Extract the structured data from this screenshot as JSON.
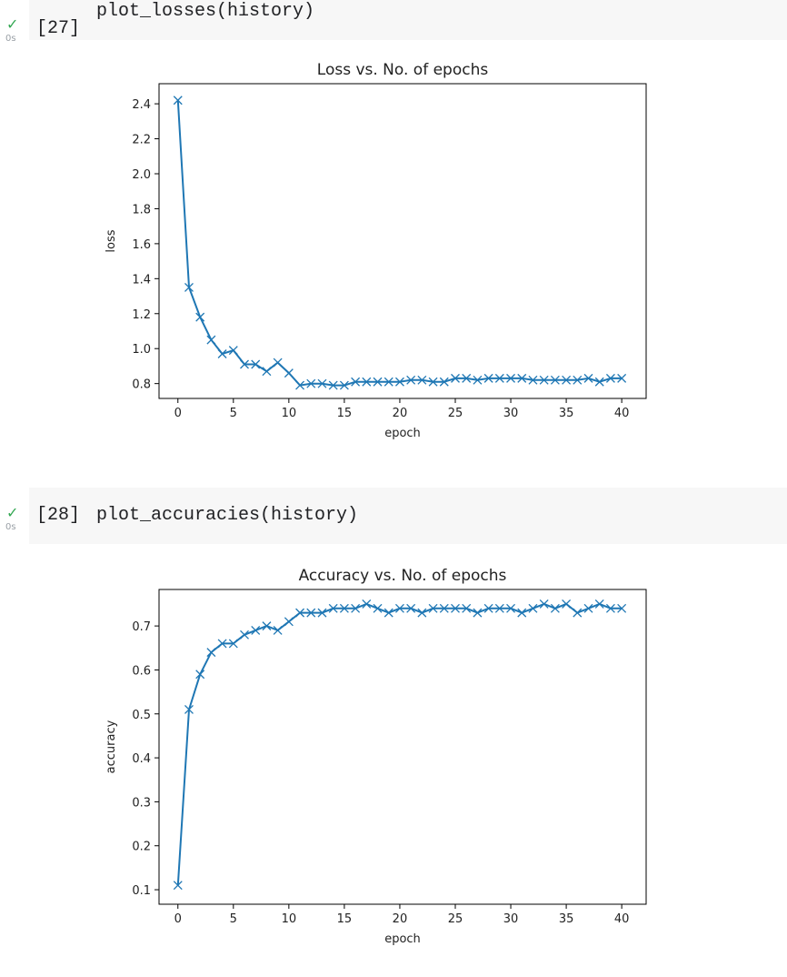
{
  "cells": [
    {
      "exec_count": "[27]",
      "code": "plot_losses(history)",
      "status_icon": "check-icon",
      "duration": "0s"
    },
    {
      "exec_count": "[28]",
      "code": "plot_accuracies(history)",
      "status_icon": "check-icon",
      "duration": "0s"
    }
  ],
  "colors": {
    "series": "#1f77b4",
    "success": "#34a853",
    "cell_bg": "#f7f7f7"
  },
  "chart_data": [
    {
      "type": "line",
      "title": "Loss vs. No. of epochs",
      "xlabel": "epoch",
      "ylabel": "loss",
      "xlim": [
        -1.7,
        42.2
      ],
      "ylim": [
        0.715,
        2.515
      ],
      "xticks": [
        0,
        5,
        10,
        15,
        20,
        25,
        30,
        35,
        40
      ],
      "yticks": [
        0.8,
        1.0,
        1.2,
        1.4,
        1.6,
        1.8,
        2.0,
        2.2,
        2.4
      ],
      "ytick_decimals": 1,
      "grid": false,
      "marker": "x",
      "x": [
        0,
        1,
        2,
        3,
        4,
        5,
        6,
        7,
        8,
        9,
        10,
        11,
        12,
        13,
        14,
        15,
        16,
        17,
        18,
        19,
        20,
        21,
        22,
        23,
        24,
        25,
        26,
        27,
        28,
        29,
        30,
        31,
        32,
        33,
        34,
        35,
        36,
        37,
        38,
        39,
        40
      ],
      "series": [
        {
          "values": [
            2.42,
            1.35,
            1.18,
            1.05,
            0.97,
            0.99,
            0.91,
            0.91,
            0.87,
            0.92,
            0.86,
            0.79,
            0.8,
            0.8,
            0.79,
            0.79,
            0.81,
            0.81,
            0.81,
            0.81,
            0.81,
            0.82,
            0.82,
            0.81,
            0.81,
            0.83,
            0.83,
            0.82,
            0.83,
            0.83,
            0.83,
            0.83,
            0.82,
            0.82,
            0.82,
            0.82,
            0.82,
            0.83,
            0.81,
            0.83,
            0.83
          ]
        }
      ]
    },
    {
      "type": "line",
      "title": "Accuracy vs. No. of epochs",
      "xlabel": "epoch",
      "ylabel": "accuracy",
      "xlim": [
        -1.7,
        42.2
      ],
      "ylim": [
        0.067,
        0.783
      ],
      "xticks": [
        0,
        5,
        10,
        15,
        20,
        25,
        30,
        35,
        40
      ],
      "yticks": [
        0.1,
        0.2,
        0.3,
        0.4,
        0.5,
        0.6,
        0.7
      ],
      "ytick_decimals": 1,
      "grid": false,
      "marker": "x",
      "x": [
        0,
        1,
        2,
        3,
        4,
        5,
        6,
        7,
        8,
        9,
        10,
        11,
        12,
        13,
        14,
        15,
        16,
        17,
        18,
        19,
        20,
        21,
        22,
        23,
        24,
        25,
        26,
        27,
        28,
        29,
        30,
        31,
        32,
        33,
        34,
        35,
        36,
        37,
        38,
        39,
        40
      ],
      "series": [
        {
          "values": [
            0.11,
            0.51,
            0.59,
            0.64,
            0.66,
            0.66,
            0.68,
            0.69,
            0.7,
            0.69,
            0.71,
            0.73,
            0.73,
            0.73,
            0.74,
            0.74,
            0.74,
            0.75,
            0.74,
            0.73,
            0.74,
            0.74,
            0.73,
            0.74,
            0.74,
            0.74,
            0.74,
            0.73,
            0.74,
            0.74,
            0.74,
            0.73,
            0.74,
            0.75,
            0.74,
            0.75,
            0.73,
            0.74,
            0.75,
            0.74,
            0.74
          ]
        }
      ]
    }
  ]
}
